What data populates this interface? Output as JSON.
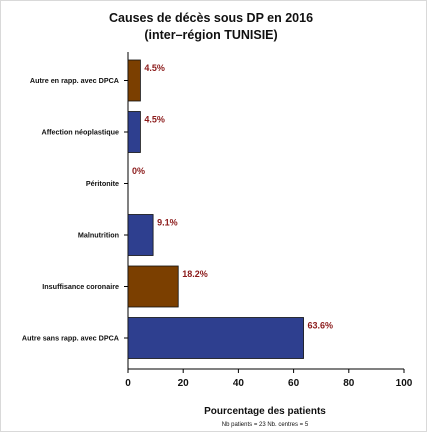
{
  "chart_data": {
    "type": "bar",
    "orientation": "horizontal",
    "title": "Causes de décès sous DP en 2016",
    "subtitle": "(inter–région TUNISIE)",
    "xlabel": "Pourcentage des patients",
    "footnote": "Nb patients = 23    Nb. centres = 5",
    "xlim": [
      0,
      100
    ],
    "xticks": [
      "0",
      "20",
      "40",
      "60",
      "80",
      "100"
    ],
    "grid": false,
    "categories": [
      "Autre en rapp. avec DPCA",
      "Affection néoplastique",
      "Péritonite",
      "Malnutrition",
      "Insuffisance coronaire",
      "Autre sans rapp. avec DPCA"
    ],
    "values": [
      4.5,
      4.5,
      0,
      9.1,
      18.2,
      63.6
    ],
    "data_labels": [
      "4.5%",
      "4.5%",
      "0%",
      "9.1%",
      "18.2%",
      "63.6%"
    ],
    "bar_colors": [
      "#7b3f00",
      "#2e3f8f",
      "#2e3f8f",
      "#2e3f8f",
      "#7b3f00",
      "#2e3f8f"
    ],
    "label_color": "#8b1a1a"
  }
}
